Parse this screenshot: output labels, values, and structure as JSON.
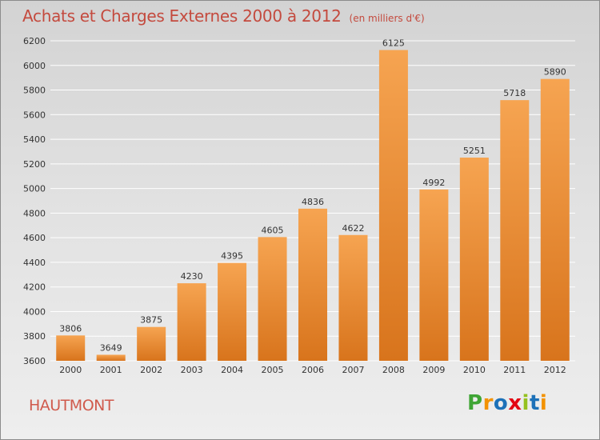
{
  "title": "Achats et Charges Externes 2000 à 2012",
  "subtitle": "(en milliers d'€)",
  "city": "HAUTMONT",
  "logo": {
    "letters": [
      "P",
      "r",
      "o",
      "x",
      "i",
      "t",
      "i"
    ],
    "colors": [
      "#3fa535",
      "#f39200",
      "#1d71b8",
      "#e30613",
      "#95c11f",
      "#1d71b8",
      "#f39200"
    ]
  },
  "colors": {
    "bar_light": "#f6a451",
    "bar_dark": "#d8741c",
    "grid": "#ffffff",
    "axis_text": "#333333"
  },
  "chart_data": {
    "type": "bar",
    "title": "Achats et Charges Externes 2000 à 2012",
    "subtitle": "(en milliers d'€)",
    "xlabel": "",
    "ylabel": "",
    "categories": [
      "2000",
      "2001",
      "2002",
      "2003",
      "2004",
      "2005",
      "2006",
      "2007",
      "2008",
      "2009",
      "2010",
      "2011",
      "2012"
    ],
    "values": [
      3806,
      3649,
      3875,
      4230,
      4395,
      4605,
      4836,
      4622,
      6125,
      4992,
      5251,
      5718,
      5890
    ],
    "ylim": [
      3600,
      6200
    ],
    "yticks": [
      3600,
      3800,
      4000,
      4200,
      4400,
      4600,
      4800,
      5000,
      5200,
      5400,
      5600,
      5800,
      6000,
      6200
    ],
    "grid": true,
    "data_labels": true
  }
}
